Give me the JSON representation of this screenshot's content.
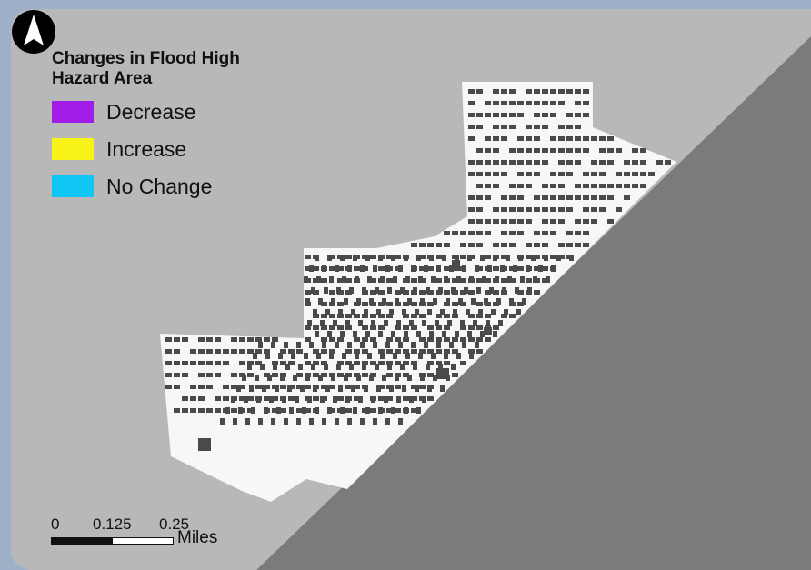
{
  "legend": {
    "title": "Changes in Flood High Hazard Area",
    "items": [
      {
        "label": "Decrease",
        "color": "#a31de8"
      },
      {
        "label": "Increase",
        "color": "#f7f317"
      },
      {
        "label": "No Change",
        "color": "#10c6f7"
      }
    ]
  },
  "scale_bar": {
    "ticks": [
      "0",
      "0.125",
      "0.25"
    ],
    "units": "Miles"
  },
  "north_arrow": {
    "icon": "north-arrow-icon"
  },
  "colors": {
    "land": "#b8b8b8",
    "water": "#7b7b7b",
    "study_area": "#f7f7f5",
    "buildings": "#4a4a4a"
  }
}
